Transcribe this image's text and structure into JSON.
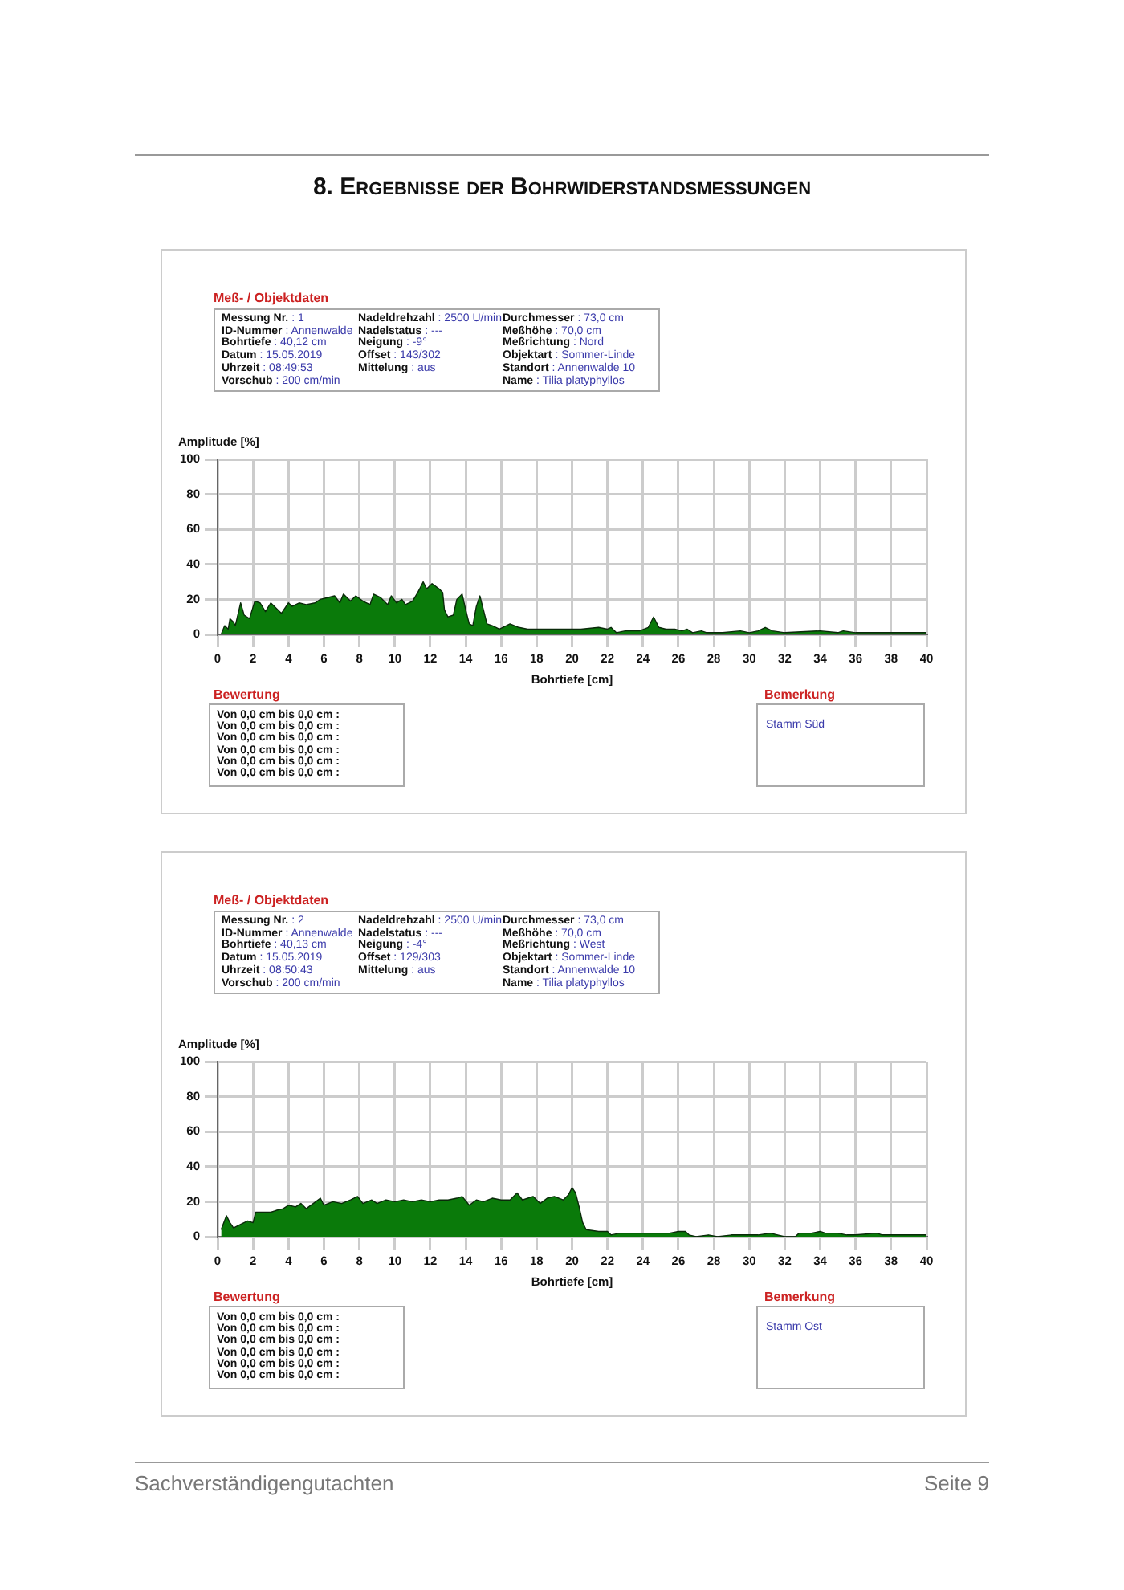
{
  "chart_data": [
    {
      "type": "area",
      "title": "8. Ergebnisse der Bohrwiderstandsmessungen",
      "xlabel": "Bohrtiefe [cm]",
      "ylabel": "Amplitude [%]",
      "xlim": [
        0,
        40
      ],
      "xticks": [
        0,
        2,
        4,
        6,
        8,
        10,
        12,
        14,
        16,
        18,
        20,
        22,
        24,
        26,
        28,
        30,
        32,
        34,
        36,
        38,
        40
      ],
      "ylim": [
        0,
        100
      ],
      "yticks": [
        0,
        20,
        40,
        60,
        80,
        100
      ],
      "grid": true,
      "legend": false,
      "x": [
        0.2,
        0.4,
        0.6,
        0.7,
        0.9,
        1.0,
        1.3,
        1.5,
        1.8,
        2.1,
        2.4,
        2.7,
        3.0,
        3.3,
        3.6,
        4.0,
        4.2,
        4.6,
        5.0,
        5.5,
        5.8,
        6.2,
        6.6,
        6.9,
        7.1,
        7.5,
        7.8,
        8.2,
        8.6,
        8.8,
        9.2,
        9.6,
        9.8,
        10.1,
        10.4,
        10.6,
        11.0,
        11.3,
        11.6,
        11.8,
        12.1,
        12.5,
        12.7,
        12.8,
        13.0,
        13.3,
        13.5,
        13.8,
        14.0,
        14.2,
        14.4,
        14.6,
        14.8,
        15.0,
        15.2,
        15.5,
        15.9,
        16.5,
        17.0,
        17.5,
        18.5,
        19,
        20,
        20.5,
        21.5,
        22,
        22.2,
        22.5,
        23.0,
        23.8,
        24.3,
        24.6,
        24.9,
        25.3,
        25.8,
        26.2,
        26.5,
        26.8,
        27.3,
        27.6,
        28.5,
        29.5,
        30,
        30.5,
        30.9,
        31.3,
        32,
        34,
        35,
        35.3,
        36,
        38,
        40
      ],
      "series": [
        {
          "color": "#0a7a0a",
          "values": [
            0,
            5,
            3,
            9,
            7,
            5,
            18,
            11,
            9,
            19,
            18,
            13,
            18,
            15,
            12,
            18,
            16,
            18,
            17,
            18,
            20,
            21,
            22,
            18,
            23,
            19,
            22,
            19,
            17,
            23,
            21,
            17,
            22,
            18,
            20,
            17,
            19,
            24,
            30,
            26,
            29,
            26,
            24,
            14,
            10,
            11,
            20,
            23,
            14,
            6,
            5,
            16,
            22,
            14,
            6,
            5,
            3,
            6,
            4,
            3,
            3,
            3,
            3,
            3,
            4,
            3,
            4,
            1,
            2,
            2,
            4,
            10,
            4,
            3,
            3,
            2,
            3,
            1,
            2,
            1,
            1,
            2,
            1,
            2,
            4,
            2,
            1,
            2,
            1,
            2,
            1,
            1,
            1
          ]
        }
      ],
      "annotations": [
        "Meß- / Objektdaten",
        "Messung Nr. : 1",
        "ID-Nummer : Annenwalde",
        "Bohrtiefe : 40,12 cm",
        "Datum : 15.05.2019",
        "Uhrzeit : 08:49:53",
        "Vorschub : 200 cm/min",
        "Nadeldrehzahl : 2500 U/min",
        "Nadelstatus : ---",
        "Neigung : -9°",
        "Offset : 143/302",
        "Mittelung : aus",
        "Durchmesser : 73,0 cm",
        "Meßhöhe : 70,0 cm",
        "Meßrichtung : Nord",
        "Objektart : Sommer-Linde",
        "Standort : Annenwalde 10",
        "Name : Tilia platyphyllos",
        "Bewertung",
        "Von 0,0 cm bis 0,0 cm :",
        "Von 0,0 cm bis 0,0 cm :",
        "Von 0,0 cm bis 0,0 cm :",
        "Von 0,0 cm bis 0,0 cm :",
        "Von 0,0 cm bis 0,0 cm :",
        "Von 0,0 cm bis 0,0 cm :",
        "Bemerkung",
        "Stamm Süd"
      ]
    },
    {
      "type": "area",
      "xlabel": "Bohrtiefe [cm]",
      "ylabel": "Amplitude [%]",
      "xlim": [
        0,
        40
      ],
      "xticks": [
        0,
        2,
        4,
        6,
        8,
        10,
        12,
        14,
        16,
        18,
        20,
        22,
        24,
        26,
        28,
        30,
        32,
        34,
        36,
        38,
        40
      ],
      "ylim": [
        0,
        100
      ],
      "yticks": [
        0,
        20,
        40,
        60,
        80,
        100
      ],
      "grid": true,
      "legend": false,
      "x": [
        0.2,
        0.5,
        0.7,
        0.9,
        1.3,
        1.7,
        2.0,
        2.15,
        2.5,
        3.0,
        3.3,
        3.7,
        4.0,
        4.4,
        4.7,
        5.0,
        5.4,
        5.8,
        6.0,
        6.5,
        7.0,
        7.5,
        7.9,
        8.2,
        8.7,
        9.0,
        9.5,
        10.0,
        10.5,
        11.0,
        11.5,
        12.0,
        12.5,
        13.0,
        13.5,
        13.8,
        14.2,
        14.6,
        15.0,
        15.5,
        16.0,
        16.5,
        16.9,
        17.2,
        17.8,
        18.2,
        18.6,
        19.0,
        19.5,
        19.8,
        20.0,
        20.2,
        20.4,
        20.6,
        20.8,
        21.5,
        22.0,
        22.2,
        22.7,
        23.5,
        24.5,
        25.5,
        26.0,
        26.4,
        26.6,
        27.0,
        27.7,
        28.2,
        29.0,
        29.5,
        30.0,
        30.5,
        31.2,
        31.6,
        32.0,
        32.6,
        32.8,
        33.5,
        34.0,
        34.3,
        35.0,
        35.5,
        36,
        37.2,
        37.5,
        38,
        39.5,
        40
      ],
      "series": [
        {
          "color": "#0a7a0a",
          "values": [
            4,
            12,
            8,
            5,
            7,
            9,
            8,
            14,
            14,
            14,
            15,
            16,
            18,
            17,
            19,
            16,
            19,
            22,
            18,
            20,
            19,
            21,
            23,
            19,
            21,
            19,
            21,
            20,
            21,
            20,
            21,
            20,
            21,
            21,
            22,
            23,
            18,
            21,
            20,
            22,
            21,
            21,
            25,
            21,
            23,
            19,
            22,
            23,
            21,
            24,
            28,
            25,
            17,
            8,
            4,
            3,
            3,
            1,
            2,
            2,
            2,
            2,
            3,
            3,
            1,
            0,
            1,
            0,
            1,
            1,
            1,
            1,
            2,
            1,
            0,
            0,
            2,
            2,
            3,
            2,
            2,
            1,
            1,
            2,
            1,
            1,
            1,
            1
          ]
        }
      ],
      "annotations": [
        "Meß- / Objektdaten",
        "Messung Nr. : 2",
        "ID-Nummer : Annenwalde",
        "Bohrtiefe : 40,13 cm",
        "Datum : 15.05.2019",
        "Uhrzeit : 08:50:43",
        "Vorschub : 200 cm/min",
        "Nadeldrehzahl : 2500 U/min",
        "Nadelstatus : ---",
        "Neigung : -4°",
        "Offset : 129/303",
        "Mittelung : aus",
        "Durchmesser : 73,0 cm",
        "Meßhöhe : 70,0 cm",
        "Meßrichtung : West",
        "Objektart : Sommer-Linde",
        "Standort : Annenwalde 10",
        "Name : Tilia platyphyllos",
        "Bewertung",
        "Von 0,0 cm bis 0,0 cm :",
        "Von 0,0 cm bis 0,0 cm :",
        "Von 0,0 cm bis 0,0 cm :",
        "Von 0,0 cm bis 0,0 cm :",
        "Von 0,0 cm bis 0,0 cm :",
        "Von 0,0 cm bis 0,0 cm :",
        "Bemerkung",
        "Stamm Ost",
        "Sachverständigengutachten",
        "Seite 9"
      ]
    }
  ]
}
